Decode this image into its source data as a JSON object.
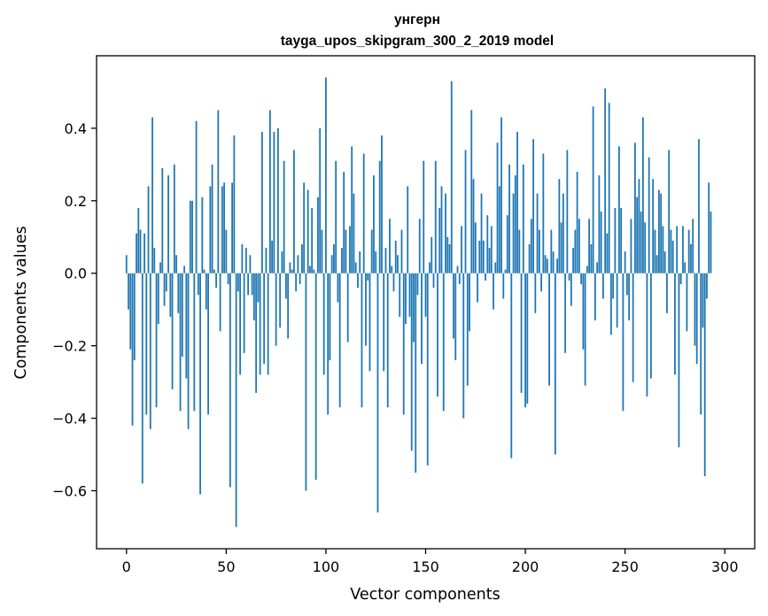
{
  "chart_data": {
    "type": "bar",
    "title": "унгерн",
    "subtitle": "tayga_upos_skipgram_300_2_2019 model",
    "xlabel": "Vector components",
    "ylabel": "Components values",
    "xlim": [
      -15,
      315
    ],
    "ylim": [
      -0.76,
      0.6
    ],
    "x_ticks": [
      0,
      50,
      100,
      150,
      200,
      250,
      300
    ],
    "x_tick_labels": [
      "0",
      "50",
      "100",
      "150",
      "200",
      "250",
      "300"
    ],
    "y_ticks": [
      -0.6,
      -0.4,
      -0.2,
      0.0,
      0.2,
      0.4
    ],
    "y_tick_labels": [
      "−0.6",
      "−0.4",
      "−0.2",
      "0.0",
      "0.2",
      "0.4"
    ],
    "bar_color": "#1f77b4",
    "grid": false,
    "values": [
      0.05,
      -0.1,
      -0.21,
      -0.42,
      -0.24,
      0.11,
      0.18,
      0.12,
      -0.58,
      0.11,
      -0.39,
      0.24,
      -0.43,
      0.43,
      0.07,
      -0.37,
      -0.14,
      0.03,
      0.29,
      -0.09,
      -0.05,
      0.27,
      -0.12,
      -0.32,
      0.3,
      0.05,
      -0.11,
      -0.38,
      -0.23,
      0.02,
      -0.29,
      -0.43,
      0.2,
      0.2,
      -0.38,
      0.42,
      -0.06,
      -0.61,
      0.21,
      0.01,
      -0.1,
      -0.39,
      0.24,
      0.3,
      0.01,
      -0.04,
      0.45,
      -0.16,
      0.24,
      0.25,
      0.12,
      -0.03,
      -0.59,
      0.25,
      0.38,
      -0.7,
      -0.05,
      -0.28,
      0.08,
      -0.22,
      0.07,
      -0.06,
      0.05,
      -0.06,
      -0.13,
      -0.33,
      -0.08,
      -0.28,
      0.39,
      -0.25,
      0.07,
      -0.28,
      0.45,
      0.09,
      0.39,
      -0.2,
      0.4,
      -0.15,
      0.06,
      0.31,
      -0.07,
      -0.18,
      0.03,
      0.01,
      0.34,
      -0.05,
      0.05,
      -0.03,
      0.08,
      0.25,
      -0.6,
      0.23,
      0.02,
      0.18,
      0.01,
      -0.57,
      0.21,
      0.4,
      0.12,
      -0.28,
      0.54,
      -0.39,
      -0.24,
      0.05,
      0.08,
      0.31,
      -0.08,
      -0.37,
      0.07,
      0.28,
      0.12,
      -0.19,
      0.13,
      0.35,
      0.22,
      0.03,
      -0.04,
      0.06,
      -0.37,
      0.33,
      -0.2,
      -0.02,
      -0.27,
      0.12,
      0.27,
      0.06,
      -0.66,
      0.31,
      0.38,
      -0.27,
      0.07,
      -0.37,
      0.15,
      0.02,
      -0.05,
      0.09,
      0.05,
      -0.12,
      0.12,
      -0.39,
      -0.14,
      0.24,
      -0.12,
      -0.49,
      -0.19,
      -0.55,
      -0.06,
      0.15,
      -0.25,
      0.31,
      -0.12,
      -0.53,
      0.03,
      0.1,
      -0.04,
      0.31,
      -0.34,
      0.18,
      0.24,
      -0.38,
      0.22,
      0.1,
      0.08,
      0.53,
      -0.18,
      -0.24,
      0.02,
      -0.03,
      0.13,
      -0.4,
      0.34,
      -0.31,
      -0.16,
      0.45,
      0.26,
      0.14,
      -0.08,
      0.09,
      0.22,
      0.09,
      -0.02,
      0.16,
      0.07,
      0.13,
      -0.1,
      0.03,
      0.36,
      0.24,
      0.43,
      -0.07,
      0.01,
      0.16,
      0.3,
      -0.51,
      0.22,
      0.27,
      0.39,
      0.12,
      -0.33,
      0.3,
      -0.37,
      -0.36,
      0.08,
      0.15,
      0.37,
      -0.11,
      0.22,
      0.12,
      -0.05,
      0.33,
      0.05,
      0.04,
      -0.31,
      0.12,
      0.06,
      -0.5,
      0.04,
      0.26,
      0.14,
      0.22,
      -0.22,
      0.34,
      -0.02,
      -0.09,
      0.07,
      0.12,
      0.28,
      0.15,
      -0.03,
      -0.21,
      -0.31,
      0.02,
      0.15,
      0.08,
      0.46,
      -0.13,
      0.03,
      0.27,
      0.17,
      -0.07,
      0.51,
      0.11,
      0.47,
      -0.17,
      -0.07,
      0.18,
      -0.15,
      0.35,
      0.18,
      -0.38,
      0.06,
      -0.06,
      -0.13,
      0.15,
      -0.3,
      0.36,
      0.21,
      0.26,
      0.17,
      0.43,
      0.14,
      -0.34,
      0.32,
      -0.29,
      0.26,
      0.12,
      0.05,
      0.23,
      0.22,
      0.13,
      0.06,
      -0.11,
      0.34,
      0.12,
      0.09,
      -0.28,
      0.13,
      -0.48,
      -0.03,
      0.13,
      0.03,
      -0.16,
      0.12,
      0.08,
      0.15,
      -0.2,
      -0.25,
      0.37,
      -0.39,
      -0.15,
      -0.56,
      -0.07,
      0.25,
      0.17
    ]
  }
}
